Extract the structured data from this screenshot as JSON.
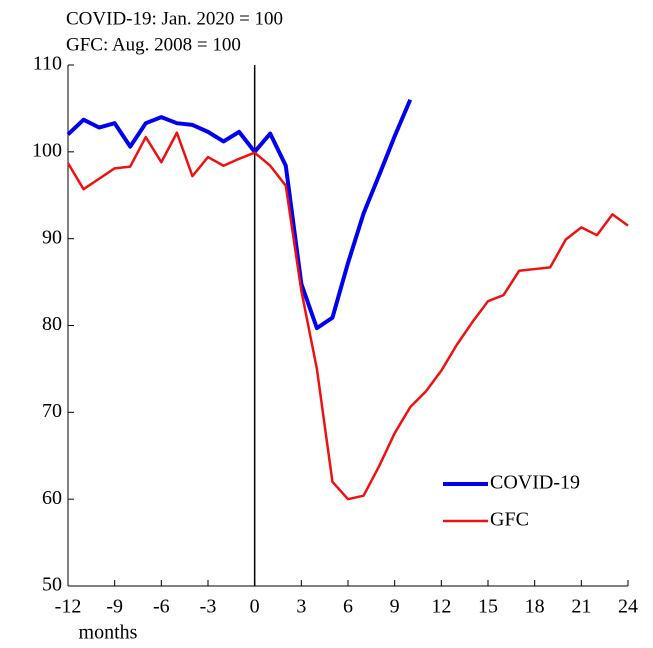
{
  "chart_data": {
    "type": "line",
    "annotations": [
      "COVID-19: Jan. 2020 = 100",
      "GFC: Aug. 2008 = 100"
    ],
    "x_label": "months",
    "xlim": [
      -12,
      24
    ],
    "xticks": [
      -12,
      -9,
      -6,
      -3,
      0,
      3,
      6,
      9,
      12,
      15,
      18,
      21,
      24
    ],
    "ylim": [
      50,
      110
    ],
    "yticks": [
      50,
      60,
      70,
      80,
      90,
      100,
      110
    ],
    "legend": "lower right",
    "series": [
      {
        "name": "COVID-19",
        "color": "#0000ee",
        "x": [
          -12,
          -11,
          -10,
          -9,
          -8,
          -7,
          -6,
          -5,
          -4,
          -3,
          -2,
          -1,
          0,
          1,
          2,
          3,
          4,
          5,
          6,
          7,
          8,
          9,
          10
        ],
        "values": [
          102,
          103.7,
          102.8,
          103.3,
          100.6,
          103.3,
          104,
          103.3,
          103.1,
          102.3,
          101.2,
          102.3,
          100,
          102.1,
          98.4,
          84.8,
          79.7,
          80.9,
          87.2,
          92.9,
          97.3,
          101.8,
          106
        ]
      },
      {
        "name": "GFC",
        "color": "#ee1111",
        "x": [
          -12,
          -11,
          -10,
          -9,
          -8,
          -7,
          -6,
          -5,
          -4,
          -3,
          -2,
          -1,
          0,
          1,
          2,
          3,
          4,
          5,
          6,
          7,
          8,
          9,
          10,
          11,
          12,
          13,
          14,
          15,
          16,
          17,
          18,
          19,
          20,
          21,
          22,
          23,
          24
        ],
        "values": [
          98.7,
          95.7,
          96.9,
          98.1,
          98.3,
          101.7,
          98.8,
          102.2,
          97.2,
          99.4,
          98.4,
          99.2,
          99.9,
          98.4,
          96.1,
          84,
          75,
          62,
          60,
          60.4,
          63.8,
          67.6,
          70.6,
          72.4,
          74.8,
          77.8,
          80.4,
          82.8,
          83.5,
          86.3,
          86.5,
          86.7,
          89.9,
          91.3,
          90.4,
          92.8,
          91.5
        ]
      }
    ]
  }
}
